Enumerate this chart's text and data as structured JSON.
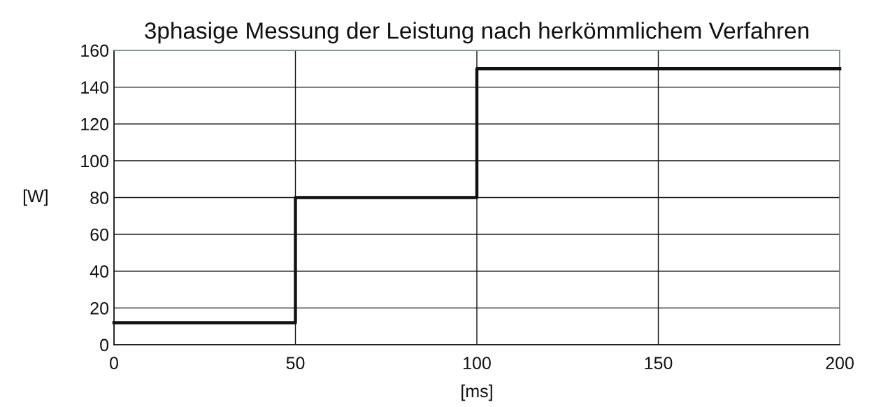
{
  "chart_data": {
    "type": "step",
    "title": "3phasige Messung der Leistung nach herkömmlichem Verfahren",
    "xlabel": "[ms]",
    "ylabel": "[W]",
    "x": [
      0,
      50,
      100,
      200
    ],
    "series": [
      {
        "color": "#111111",
        "values": [
          12,
          80,
          150,
          150
        ]
      }
    ],
    "xlim": [
      0,
      200
    ],
    "xticks": [
      0,
      50,
      100,
      150,
      200
    ],
    "ylim": [
      0,
      160
    ],
    "yticks": [
      0,
      20,
      40,
      60,
      80,
      100,
      120,
      140,
      160
    ],
    "grid": true,
    "marker": "none",
    "line_style": "solid"
  }
}
